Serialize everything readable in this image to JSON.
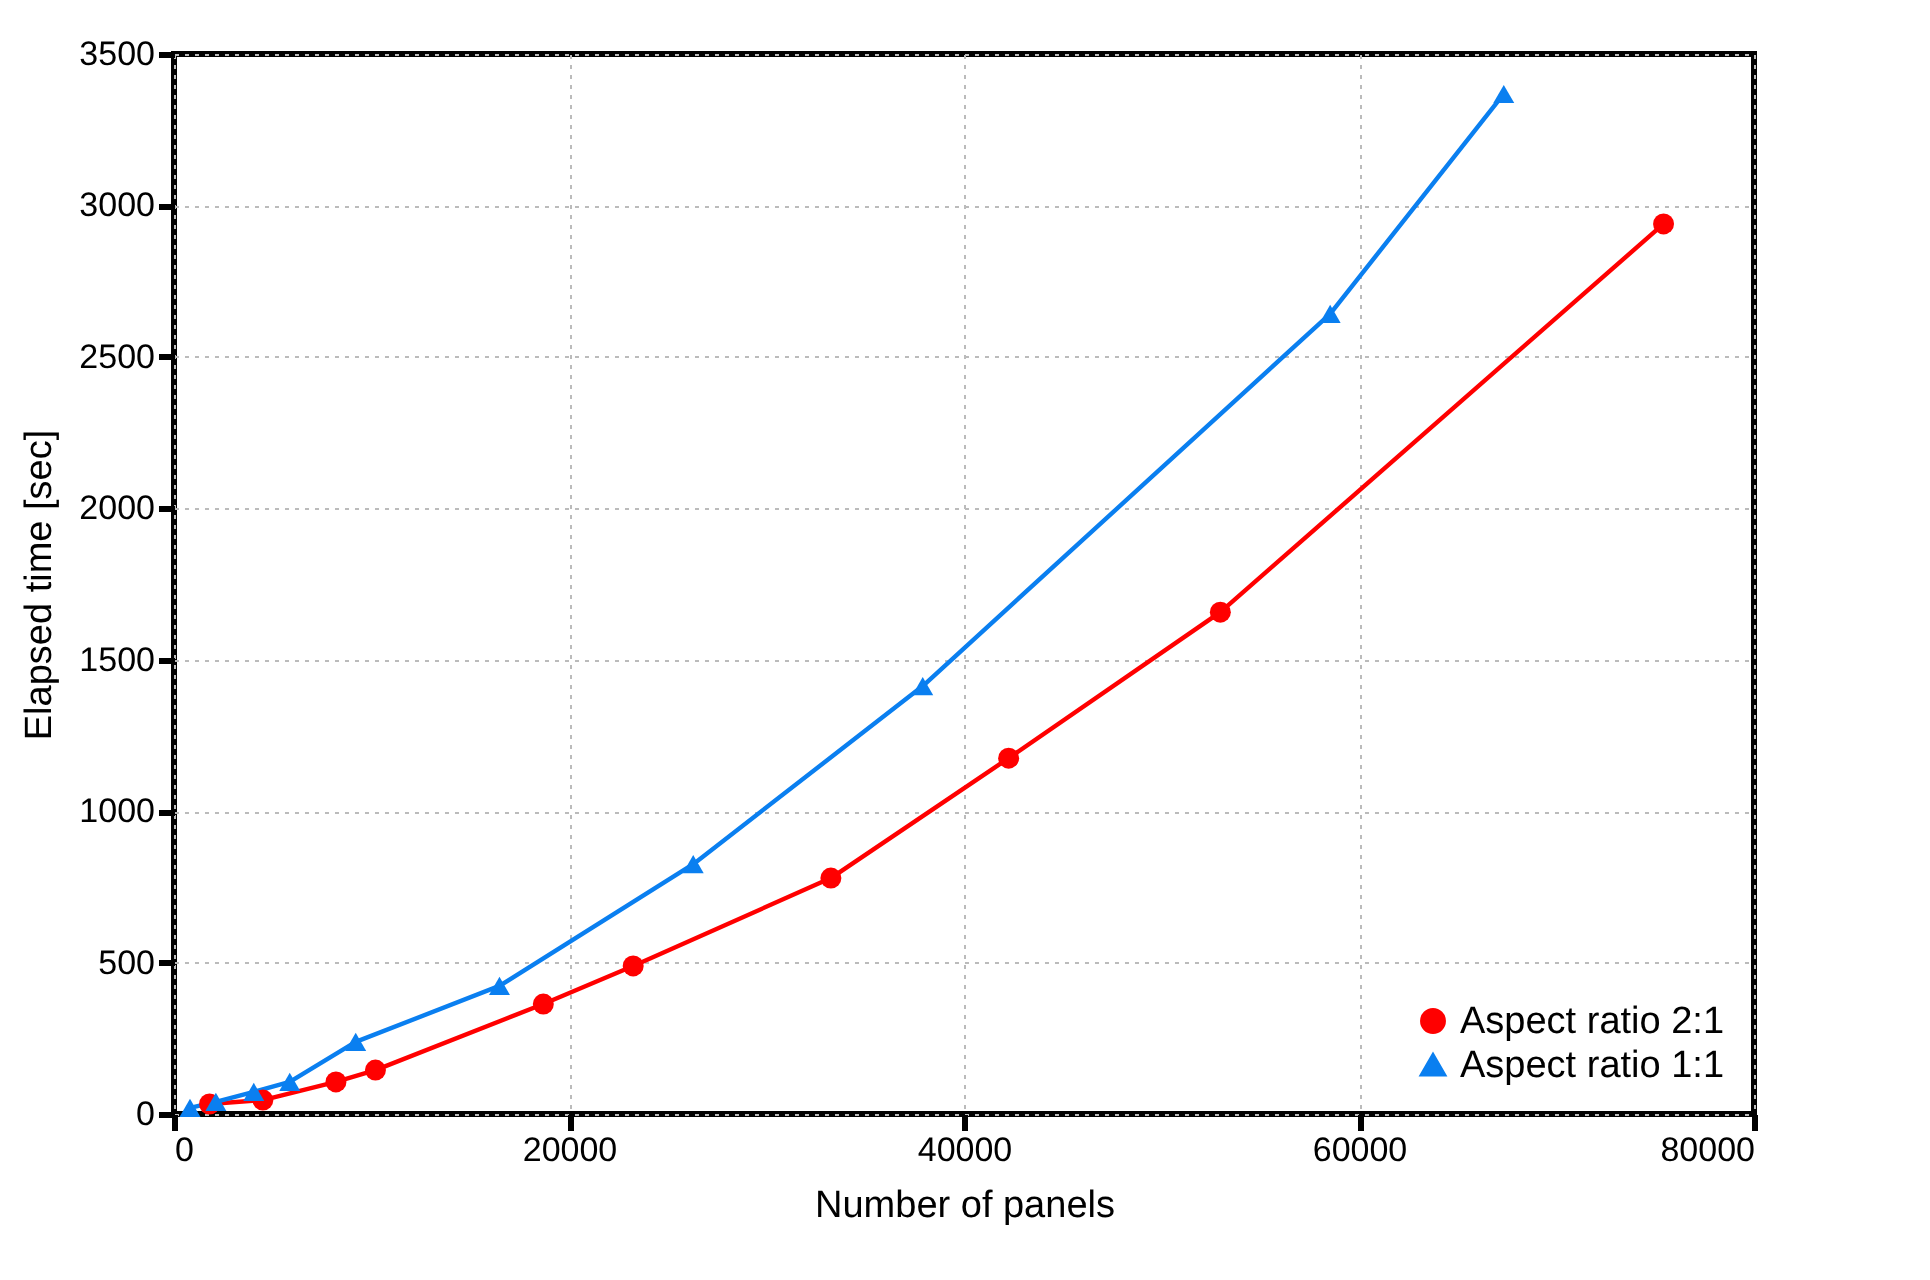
{
  "chart_data": {
    "type": "line",
    "xlabel": "Number of panels",
    "ylabel": "Elapsed time [sec]",
    "xlim": [
      0,
      80000
    ],
    "xticks": [
      0,
      20000,
      40000,
      60000,
      80000
    ],
    "ylim": [
      0,
      3500
    ],
    "yticks": [
      0,
      500,
      1000,
      1500,
      2000,
      2500,
      3000,
      3500
    ],
    "grid": true,
    "legend": "bottom right",
    "series": [
      {
        "name": "Aspect ratio 2:1",
        "color": "#ff0000",
        "marker": "circle",
        "x": [
          1800,
          4500,
          8200,
          10200,
          18700,
          23250,
          33260,
          42260,
          52980,
          75420
        ],
        "values": [
          33,
          46,
          106,
          145,
          363,
          489,
          779,
          1175,
          1657,
          2939
        ]
      },
      {
        "name": "Aspect ratio 1:1",
        "color": "#0a7ff0",
        "marker": "triangle",
        "x": [
          810,
          2120,
          4040,
          5860,
          9200,
          16480,
          26290,
          37910,
          58540,
          67330
        ],
        "values": [
          20,
          40,
          73,
          106,
          238,
          423,
          825,
          1413,
          2642,
          3368
        ]
      }
    ]
  }
}
